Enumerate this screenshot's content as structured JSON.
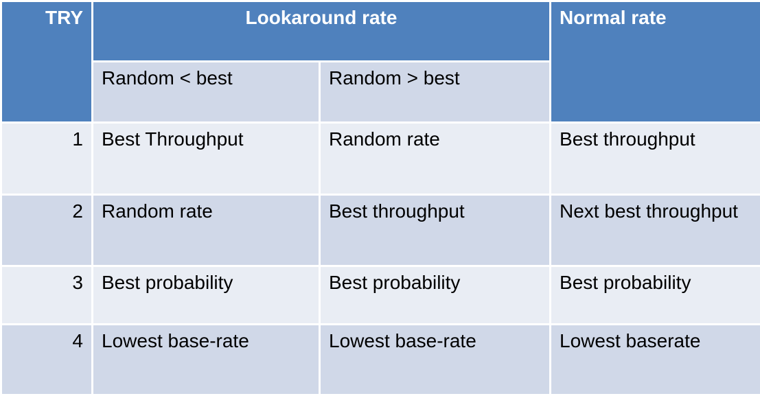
{
  "table": {
    "header": {
      "try": "TRY",
      "lookaround": "Lookaround rate",
      "normal": "Normal rate",
      "sub_lt": "Random < best",
      "sub_gt": "Random > best"
    },
    "rows": [
      {
        "try": "1",
        "lt": "Best Throughput",
        "gt": "Random rate",
        "normal": "Best throughput"
      },
      {
        "try": "2",
        "lt": "Random rate",
        "gt": "Best throughput",
        "normal": "Next best throughput"
      },
      {
        "try": "3",
        "lt": "Best probability",
        "gt": "Best probability",
        "normal": "Best probability"
      },
      {
        "try": "4",
        "lt": "Lowest base-rate",
        "gt": "Lowest base-rate",
        "normal": "Lowest baserate"
      }
    ]
  },
  "colors": {
    "header_bg": "#4f81bd",
    "row_dark": "#d0d8e8",
    "row_light": "#e9edf4"
  }
}
